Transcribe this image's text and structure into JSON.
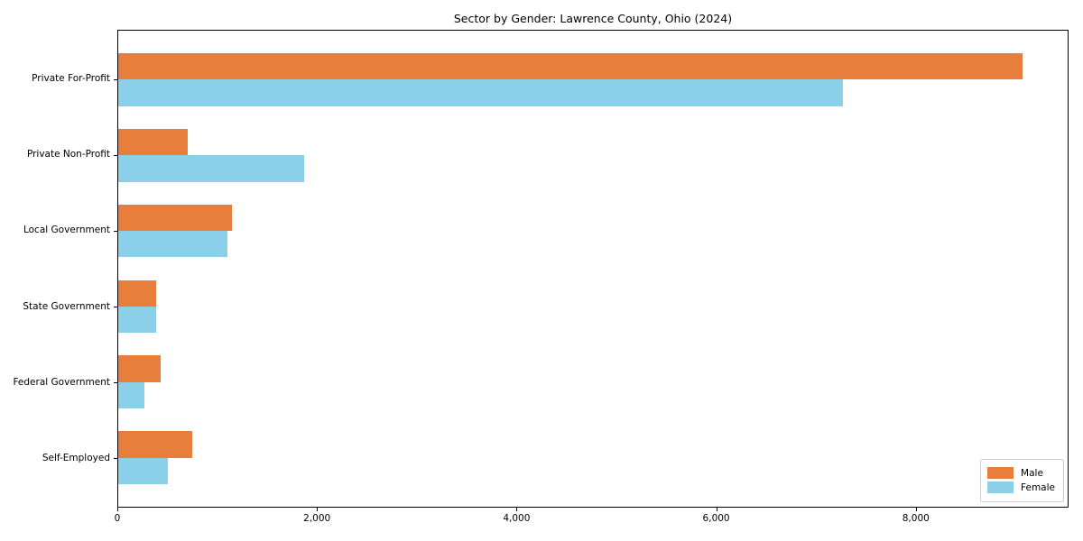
{
  "title": "Sector by Gender: Lawrence County, Ohio (2024)",
  "colors": {
    "male": "#e87e3c",
    "female": "#8bcfe8",
    "axis": "#000000",
    "legend_border": "#cccccc",
    "background": "#ffffff"
  },
  "chart_data": {
    "type": "bar",
    "orientation": "horizontal",
    "title": "Sector by Gender: Lawrence County, Ohio (2024)",
    "xlabel": "",
    "ylabel": "",
    "categories": [
      "Private For-Profit",
      "Private Non-Profit",
      "Local Government",
      "State Government",
      "Federal Government",
      "Self-Employed"
    ],
    "series": [
      {
        "name": "Male",
        "color": "#e87e3c",
        "values": [
          9080,
          700,
          1140,
          380,
          430,
          740
        ]
      },
      {
        "name": "Female",
        "color": "#8bcfe8",
        "values": [
          7270,
          1870,
          1100,
          385,
          260,
          500
        ]
      }
    ],
    "xlim": [
      0,
      9530
    ],
    "x_ticks": [
      0,
      2000,
      4000,
      6000,
      8000
    ],
    "x_tick_labels": [
      "0",
      "2,000",
      "4,000",
      "6,000",
      "8,000"
    ],
    "grid": false,
    "legend_position": "lower right"
  },
  "legend": {
    "entries": [
      {
        "label": "Male",
        "color": "#e87e3c"
      },
      {
        "label": "Female",
        "color": "#8bcfe8"
      }
    ]
  }
}
